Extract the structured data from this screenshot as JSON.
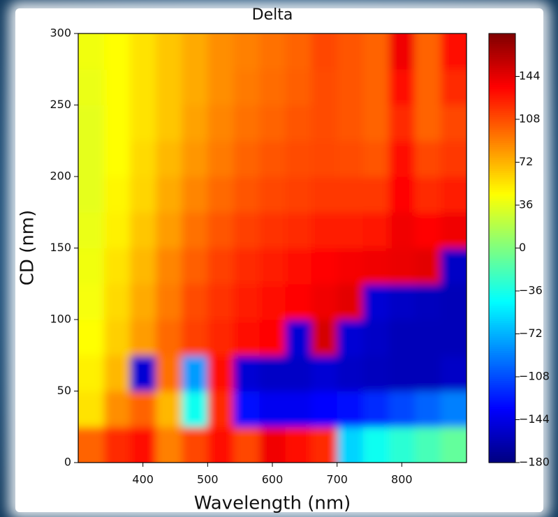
{
  "chart_data": {
    "type": "heatmap",
    "title": "Delta",
    "x_label": "Wavelength (nm)",
    "y_label": "CD (nm)",
    "x": [
      320,
      360,
      400,
      440,
      480,
      520,
      560,
      600,
      640,
      680,
      720,
      760,
      800,
      840,
      880
    ],
    "y": [
      12.5,
      37.5,
      62.5,
      87.5,
      112.5,
      137.5,
      162.5,
      187.5,
      212.5,
      237.5,
      262.5,
      287.5
    ],
    "z": [
      [
        100,
        120,
        130,
        90,
        110,
        130,
        110,
        140,
        130,
        120,
        -60,
        -40,
        -30,
        -20,
        -10
      ],
      [
        55,
        85,
        100,
        70,
        -40,
        120,
        -130,
        -140,
        -140,
        -135,
        -130,
        -120,
        -110,
        -100,
        -90
      ],
      [
        50,
        70,
        -150,
        95,
        -80,
        130,
        -150,
        -155,
        -155,
        -150,
        -155,
        -158,
        -160,
        -160,
        -155
      ],
      [
        45,
        62,
        80,
        98,
        112,
        122,
        130,
        135,
        -150,
        150,
        -150,
        -155,
        -160,
        -160,
        -160
      ],
      [
        42,
        58,
        75,
        92,
        108,
        118,
        125,
        130,
        135,
        140,
        145,
        -150,
        -155,
        -158,
        -160
      ],
      [
        40,
        55,
        70,
        88,
        102,
        112,
        120,
        125,
        130,
        135,
        138,
        140,
        142,
        145,
        -155
      ],
      [
        38,
        50,
        65,
        80,
        95,
        105,
        112,
        118,
        120,
        125,
        125,
        128,
        140,
        135,
        140
      ],
      [
        36,
        48,
        60,
        75,
        88,
        98,
        105,
        110,
        112,
        115,
        115,
        115,
        135,
        120,
        125
      ],
      [
        36,
        45,
        58,
        70,
        82,
        92,
        100,
        105,
        108,
        110,
        108,
        105,
        130,
        110,
        115
      ],
      [
        36,
        45,
        55,
        65,
        78,
        88,
        95,
        100,
        105,
        108,
        105,
        100,
        120,
        100,
        110
      ],
      [
        38,
        45,
        55,
        65,
        75,
        85,
        92,
        97,
        102,
        108,
        105,
        100,
        130,
        100,
        120
      ],
      [
        40,
        45,
        55,
        65,
        75,
        85,
        90,
        95,
        100,
        110,
        105,
        100,
        140,
        100,
        130
      ]
    ],
    "xlim": [
      300,
      900
    ],
    "ylim": [
      0,
      300
    ],
    "xticks": [
      400,
      500,
      600,
      700,
      800
    ],
    "yticks": [
      0,
      50,
      100,
      150,
      200,
      250,
      300
    ],
    "colormap": "jet",
    "clim": [
      -180,
      180
    ],
    "cticks": [
      {
        "value": -180,
        "label": "−180"
      },
      {
        "value": -144,
        "label": "−144"
      },
      {
        "value": -108,
        "label": "−108"
      },
      {
        "value": -72,
        "label": "−72"
      },
      {
        "value": -36,
        "label": "−36"
      },
      0,
      36,
      72,
      108,
      144
    ]
  }
}
